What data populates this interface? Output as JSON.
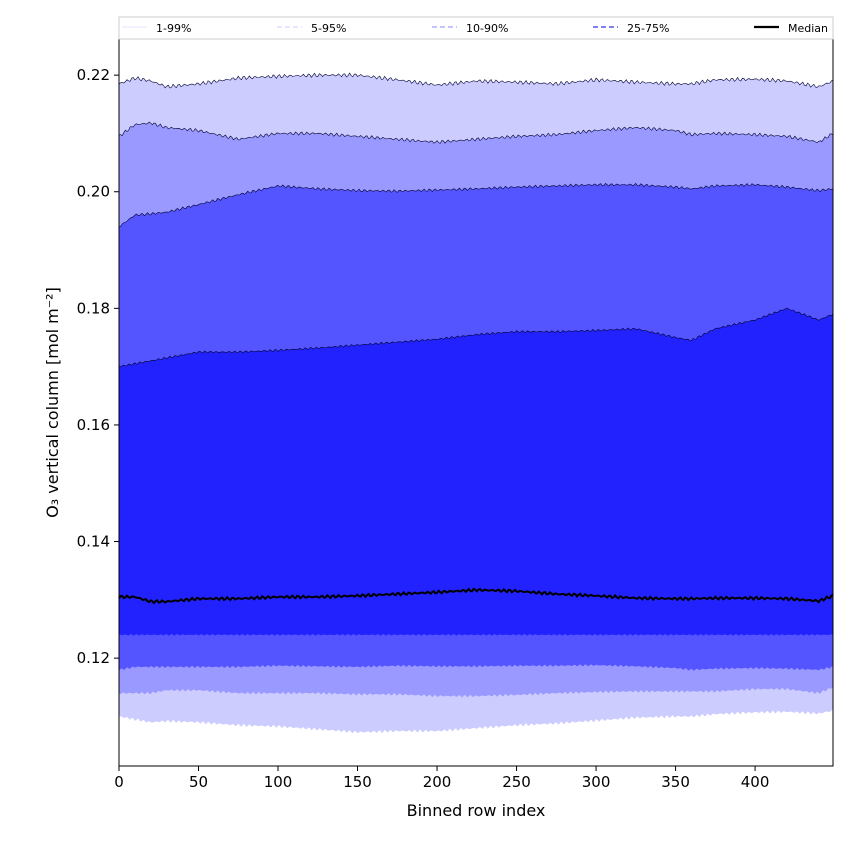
{
  "chart_data": {
    "type": "area",
    "xlabel": "Binned row index",
    "ylabel": "O₃ vertical column [mol m⁻²]",
    "xlim": [
      0,
      449
    ],
    "ylim": [
      0.1015,
      0.2262
    ],
    "xticks": [
      0,
      50,
      100,
      150,
      200,
      250,
      300,
      350,
      400
    ],
    "yticks": [
      0.12,
      0.14,
      0.16,
      0.18,
      0.2,
      0.22
    ],
    "ytick_labels": [
      "0.12",
      "0.14",
      "0.16",
      "0.18",
      "0.20",
      "0.22"
    ],
    "grid": false,
    "legend_position": "top (above plot, single row)",
    "x": [
      0,
      10,
      20,
      30,
      50,
      75,
      100,
      125,
      150,
      175,
      200,
      225,
      250,
      275,
      300,
      325,
      350,
      360,
      375,
      400,
      420,
      440,
      449
    ],
    "bands": [
      {
        "name": "1-99%",
        "fill": "#ccccff",
        "lower": [
          0.11,
          0.1095,
          0.109,
          0.1092,
          0.109,
          0.1085,
          0.1083,
          0.1078,
          0.1073,
          0.1075,
          0.1075,
          0.108,
          0.1085,
          0.1088,
          0.1093,
          0.1098,
          0.11,
          0.11,
          0.1104,
          0.1107,
          0.1108,
          0.1105,
          0.111
        ],
        "upper": [
          0.2185,
          0.2195,
          0.219,
          0.218,
          0.2185,
          0.2195,
          0.2198,
          0.22,
          0.22,
          0.2192,
          0.2183,
          0.219,
          0.2188,
          0.2185,
          0.2192,
          0.2188,
          0.2185,
          0.2185,
          0.2192,
          0.2193,
          0.219,
          0.218,
          0.219
        ]
      },
      {
        "name": "5-95%",
        "fill": "#9999ff",
        "lower": [
          0.114,
          0.114,
          0.114,
          0.1145,
          0.1145,
          0.114,
          0.114,
          0.114,
          0.1138,
          0.1138,
          0.1135,
          0.1135,
          0.1137,
          0.114,
          0.1142,
          0.1143,
          0.1143,
          0.1143,
          0.1143,
          0.1147,
          0.1147,
          0.114,
          0.115
        ],
        "upper": [
          0.2095,
          0.2115,
          0.2118,
          0.211,
          0.2105,
          0.209,
          0.21,
          0.21,
          0.2095,
          0.209,
          0.2085,
          0.209,
          0.2095,
          0.2098,
          0.2105,
          0.211,
          0.2105,
          0.2098,
          0.21,
          0.2098,
          0.2095,
          0.2085,
          0.21
        ]
      },
      {
        "name": "10-90%",
        "fill": "#5555ff",
        "lower": [
          0.118,
          0.1185,
          0.1185,
          0.1185,
          0.1185,
          0.1185,
          0.1187,
          0.1186,
          0.1185,
          0.1187,
          0.1186,
          0.1186,
          0.1187,
          0.1187,
          0.1188,
          0.1186,
          0.1183,
          0.118,
          0.1182,
          0.1183,
          0.1182,
          0.118,
          0.1185
        ],
        "upper": [
          0.194,
          0.196,
          0.1962,
          0.1965,
          0.1978,
          0.1995,
          0.201,
          0.2005,
          0.2002,
          0.2001,
          0.2003,
          0.2005,
          0.2008,
          0.201,
          0.2012,
          0.2012,
          0.2008,
          0.2005,
          0.201,
          0.2012,
          0.2008,
          0.2002,
          0.2005
        ]
      },
      {
        "name": "25-75%",
        "fill": "#2222ff",
        "lower": [
          0.124,
          0.124,
          0.124,
          0.124,
          0.124,
          0.124,
          0.124,
          0.124,
          0.124,
          0.124,
          0.124,
          0.124,
          0.124,
          0.124,
          0.124,
          0.124,
          0.124,
          0.124,
          0.124,
          0.124,
          0.124,
          0.124,
          0.124
        ],
        "upper": [
          0.17,
          0.1705,
          0.171,
          0.1715,
          0.1725,
          0.1725,
          0.1728,
          0.1732,
          0.1737,
          0.1742,
          0.1747,
          0.1755,
          0.176,
          0.176,
          0.1762,
          0.1765,
          0.175,
          0.1745,
          0.1765,
          0.178,
          0.18,
          0.178,
          0.179
        ]
      }
    ],
    "median": {
      "name": "Median",
      "color": "#000000",
      "values": [
        0.1305,
        0.1305,
        0.1297,
        0.1297,
        0.1302,
        0.1302,
        0.1305,
        0.1305,
        0.1307,
        0.131,
        0.1313,
        0.1317,
        0.1315,
        0.131,
        0.1307,
        0.1303,
        0.1302,
        0.1302,
        0.1303,
        0.1303,
        0.1302,
        0.1298,
        0.1307
      ]
    },
    "legend": [
      {
        "label": "1-99%",
        "color": "#ccccff",
        "style": "solid",
        "width": 0.6
      },
      {
        "label": "5-95%",
        "color": "#9999ff",
        "style": "dashed",
        "width": 0.6
      },
      {
        "label": "10-90%",
        "color": "#8888ff",
        "style": "dashed",
        "width": 1.1
      },
      {
        "label": "25-75%",
        "color": "#5555ee",
        "style": "dashed",
        "width": 1.4
      },
      {
        "label": "Median",
        "color": "#000000",
        "style": "solid",
        "width": 2.2
      }
    ]
  }
}
